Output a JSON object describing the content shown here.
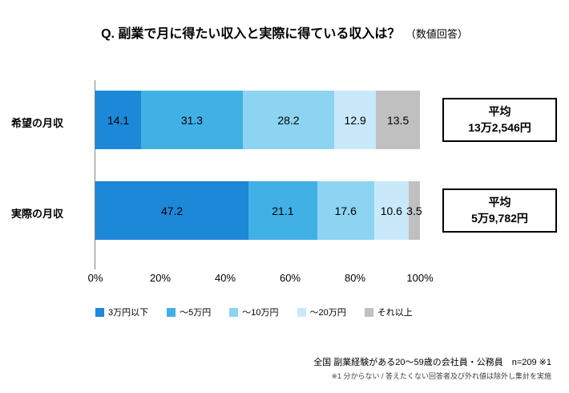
{
  "title": {
    "main": "Q. 副業で月に得たい収入と実際に得ている収入は？",
    "suffix": "（数値回答）"
  },
  "chart_data": {
    "type": "bar",
    "subtype": "horizontal_stacked",
    "categories": [
      "希望の月収",
      "実際の月収"
    ],
    "series": [
      {
        "name": "3万円以下",
        "color": "#1d87d8",
        "values": [
          14.1,
          47.2
        ]
      },
      {
        "name": "～5万円",
        "color": "#41b0e4",
        "values": [
          31.3,
          21.1
        ]
      },
      {
        "name": "～10万円",
        "color": "#8dd3f2",
        "values": [
          28.2,
          17.6
        ]
      },
      {
        "name": "～20万円",
        "color": "#c9e9fb",
        "values": [
          12.9,
          10.6
        ]
      },
      {
        "name": "それ以上",
        "color": "#c0c0c0",
        "values": [
          13.5,
          3.5
        ]
      }
    ],
    "x_ticks": [
      "0%",
      "20%",
      "40%",
      "60%",
      "80%",
      "100%"
    ],
    "xlim": [
      0,
      100
    ],
    "legend_position": "bottom",
    "averages": [
      {
        "label": "平均",
        "value": "13万2,546円"
      },
      {
        "label": "平均",
        "value": "5万9,782円"
      }
    ]
  },
  "footer": {
    "line1": "全国 副業経験がある20～59歳の会社員・公務員　n=209 ※1",
    "line2": "※1 分からない / 答えたくない回答者及び外れ値は除外し集計を実施"
  }
}
